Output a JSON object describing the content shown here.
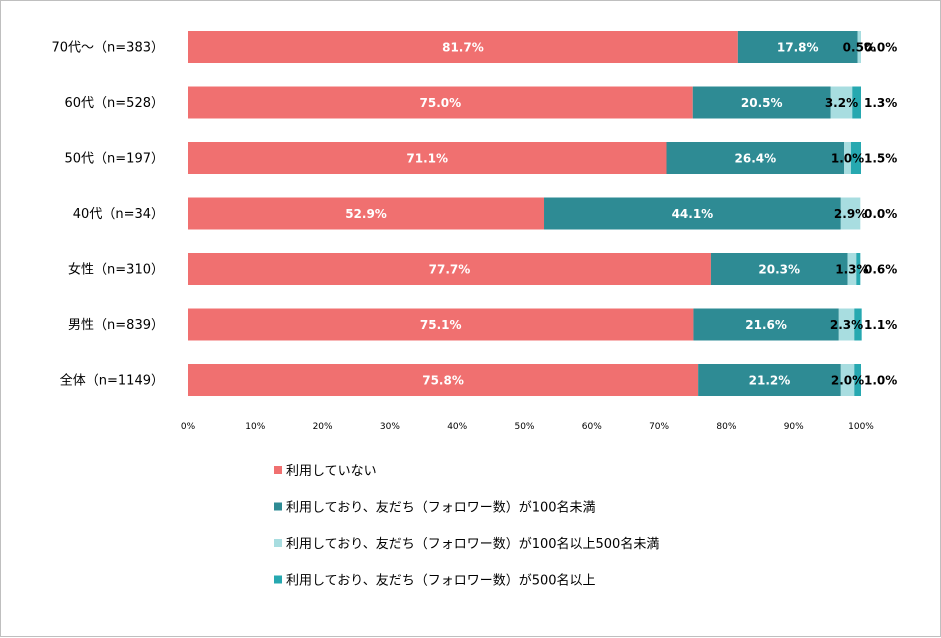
{
  "chart_data": {
    "type": "bar",
    "orientation": "horizontal",
    "stacked": true,
    "categories": [
      "70代～（n=383）",
      "60代（n=528）",
      "50代（n=197）",
      "40代（n=34）",
      "女性（n=310）",
      "男性（n=839）",
      "全体（n=1149）"
    ],
    "series": [
      {
        "name": "利用していない",
        "color": "#f07070",
        "values": [
          81.7,
          75.0,
          71.1,
          52.9,
          77.7,
          75.1,
          75.8
        ],
        "labels": [
          "81.7%",
          "75.0%",
          "71.1%",
          "52.9%",
          "77.7%",
          "75.1%",
          "75.8%"
        ]
      },
      {
        "name": "利用しており、友だち（フォロワー数）が100名未満",
        "color": "#2e8b94",
        "values": [
          17.8,
          20.5,
          26.4,
          44.1,
          20.3,
          21.6,
          21.2
        ],
        "labels": [
          "17.8%",
          "20.5%",
          "26.4%",
          "44.1%",
          "20.3%",
          "21.6%",
          "21.2%"
        ]
      },
      {
        "name": "利用しており、友だち（フォロワー数）が100名以上500名未満",
        "color": "#a8dde0",
        "values": [
          0.5,
          3.2,
          1.0,
          2.9,
          1.3,
          2.3,
          2.0
        ],
        "labels": [
          "0.5%",
          "3.2%",
          "1.0%",
          "2.9%",
          "1.3%",
          "2.3%",
          "2.0%"
        ]
      },
      {
        "name": "利用しており、友だち（フォロワー数）が500名以上",
        "color": "#26a8b0",
        "values": [
          0.0,
          1.3,
          1.5,
          0.0,
          0.6,
          1.1,
          1.0
        ],
        "labels": [
          "0.0%",
          "1.3%",
          "1.5%",
          "0.0%",
          "0.6%",
          "1.1%",
          "1.0%"
        ]
      }
    ],
    "x_ticks": [
      "0%",
      "10%",
      "20%",
      "30%",
      "40%",
      "50%",
      "60%",
      "70%",
      "80%",
      "90%",
      "100%"
    ],
    "xlim": [
      0,
      100
    ],
    "title": "",
    "xlabel": "",
    "ylabel": "",
    "grid": false,
    "legend_position": "bottom"
  }
}
